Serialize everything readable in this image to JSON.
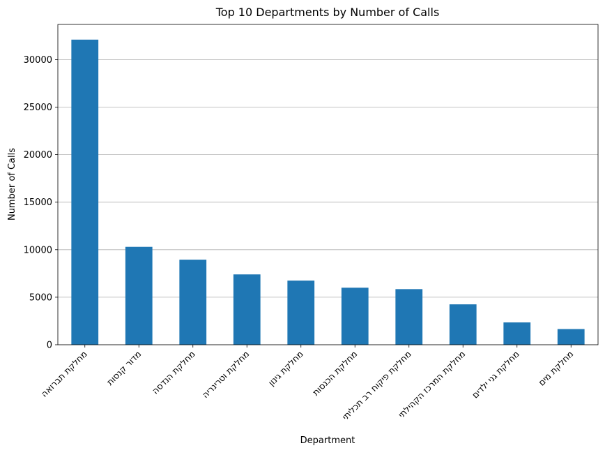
{
  "chart_data": {
    "type": "bar",
    "title": "Top 10 Departments by Number of Calls",
    "xlabel": "Department",
    "ylabel": "Number of Calls",
    "categories": [
      "מחלקת תברואה",
      "מדור קנסות",
      "מחלקת הנדסה",
      "מחלקת וטרינריה",
      "מחלקת גינון",
      "מחלקת הכנסות",
      "מחלקת פיקוח רב תכליתי",
      "מחלקת המרכז הקהילתי",
      "מחלקת גני ילדים",
      "מחלקת מים"
    ],
    "values": [
      32100,
      10300,
      8950,
      7400,
      6750,
      6000,
      5850,
      4250,
      2350,
      1650
    ],
    "ylim": [
      0,
      33700
    ],
    "yticks": [
      0,
      5000,
      10000,
      15000,
      20000,
      25000,
      30000
    ],
    "grid": "horizontal",
    "bar_color": "#1f77b4",
    "grid_color": "#b0b0b0"
  }
}
